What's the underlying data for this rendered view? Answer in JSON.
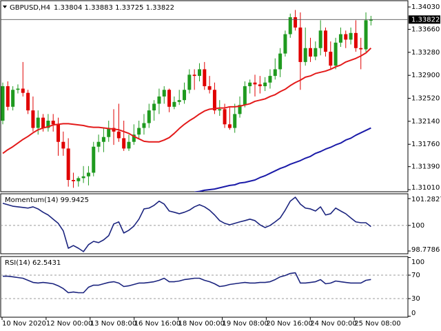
{
  "time_labels": [
    "10 Nov 2020",
    "12 Nov 00:00",
    "13 Nov 08:00",
    "16 Nov 16:00",
    "18 Nov 00:00",
    "19 Nov 08:00",
    "20 Nov 16:00",
    "24 Nov 00:00",
    "25 Nov 08:00"
  ],
  "chart_data": [
    {
      "type": "candlestick",
      "title": "GBPUSD,H4",
      "subtitle": "1.33804 1.33883 1.33725 1.33822",
      "open": [
        1.3215,
        1.3272,
        1.3238,
        1.3266,
        1.3268,
        1.3261,
        1.3232,
        1.3203,
        1.322,
        1.3203,
        1.3215,
        1.3209,
        1.318,
        1.3169,
        1.3117,
        1.3115,
        1.312,
        1.3123,
        1.3129,
        1.3172,
        1.318,
        1.3188,
        1.3203,
        1.3197,
        1.3186,
        1.3169,
        1.318,
        1.3192,
        1.3203,
        1.3211,
        1.3232,
        1.3243,
        1.3255,
        1.3266,
        1.3238,
        1.3246,
        1.3249,
        1.3266,
        1.3291,
        1.3289,
        1.33,
        1.3272,
        1.3266,
        1.3232,
        1.3234,
        1.3209,
        1.3203,
        1.3226,
        1.3241,
        1.3272,
        1.3278,
        1.3275,
        1.3272,
        1.3278,
        1.3289,
        1.33,
        1.3326,
        1.3358,
        1.3386,
        1.3369,
        1.3312,
        1.3335,
        1.3321,
        1.3335,
        1.3364,
        1.3329,
        1.3306,
        1.3344,
        1.3358,
        1.3349,
        1.336,
        1.3335,
        1.3333,
        1.33804
      ],
      "high": [
        1.3278,
        1.328,
        1.3272,
        1.3275,
        1.3312,
        1.3266,
        1.3255,
        1.3232,
        1.3226,
        1.3226,
        1.3226,
        1.322,
        1.3197,
        1.3186,
        1.3129,
        1.3123,
        1.314,
        1.314,
        1.318,
        1.3192,
        1.3203,
        1.3215,
        1.3234,
        1.3243,
        1.3215,
        1.3192,
        1.3209,
        1.3215,
        1.3226,
        1.3243,
        1.3249,
        1.3268,
        1.3272,
        1.3268,
        1.3255,
        1.3266,
        1.3278,
        1.33,
        1.33,
        1.331,
        1.3312,
        1.3289,
        1.3278,
        1.3249,
        1.3243,
        1.3237,
        1.3243,
        1.3255,
        1.328,
        1.3283,
        1.3291,
        1.3289,
        1.3287,
        1.33,
        1.3318,
        1.3335,
        1.3364,
        1.3392,
        1.3398,
        1.3394,
        1.3369,
        1.3352,
        1.3346,
        1.3381,
        1.3369,
        1.3346,
        1.3352,
        1.3369,
        1.3364,
        1.3369,
        1.3381,
        1.3352,
        1.3394,
        1.33883
      ],
      "low": [
        1.3209,
        1.3232,
        1.3232,
        1.326,
        1.3255,
        1.3226,
        1.3197,
        1.3192,
        1.3197,
        1.3197,
        1.3197,
        1.3157,
        1.3157,
        1.3106,
        1.3104,
        1.3106,
        1.3112,
        1.3108,
        1.3123,
        1.3163,
        1.3163,
        1.318,
        1.3175,
        1.318,
        1.3165,
        1.3165,
        1.3175,
        1.3186,
        1.3192,
        1.3203,
        1.3215,
        1.3226,
        1.3243,
        1.3229,
        1.3234,
        1.3241,
        1.3243,
        1.326,
        1.3266,
        1.328,
        1.3266,
        1.326,
        1.3226,
        1.3223,
        1.3203,
        1.32,
        1.3195,
        1.322,
        1.3237,
        1.326,
        1.3255,
        1.326,
        1.3264,
        1.3268,
        1.3283,
        1.3287,
        1.3321,
        1.3352,
        1.3364,
        1.3266,
        1.3306,
        1.3312,
        1.3315,
        1.3323,
        1.3321,
        1.33,
        1.33,
        1.3337,
        1.3335,
        1.3341,
        1.3329,
        1.33,
        1.3329,
        1.33725
      ],
      "close": [
        1.3272,
        1.3238,
        1.3266,
        1.3268,
        1.3261,
        1.3232,
        1.3203,
        1.322,
        1.3203,
        1.3215,
        1.3209,
        1.318,
        1.3169,
        1.3117,
        1.3115,
        1.312,
        1.3123,
        1.3129,
        1.3172,
        1.318,
        1.3188,
        1.3203,
        1.3197,
        1.3186,
        1.3169,
        1.318,
        1.3192,
        1.3203,
        1.3211,
        1.3232,
        1.3243,
        1.3255,
        1.3266,
        1.3238,
        1.3246,
        1.3249,
        1.3266,
        1.3291,
        1.3289,
        1.33,
        1.3272,
        1.3266,
        1.3232,
        1.3234,
        1.3209,
        1.3203,
        1.3226,
        1.3241,
        1.3272,
        1.3278,
        1.3275,
        1.3272,
        1.3278,
        1.3289,
        1.33,
        1.3326,
        1.3358,
        1.3386,
        1.3369,
        1.3312,
        1.3335,
        1.3321,
        1.3335,
        1.3364,
        1.3329,
        1.3306,
        1.3344,
        1.3358,
        1.3349,
        1.336,
        1.3335,
        1.3333,
        1.3381,
        1.33822
      ],
      "up_color": "#1f9a1f",
      "down_color": "#e00000",
      "overlays": [
        {
          "color": "#e31a1a",
          "values": [
            1.3161,
            1.3167,
            1.3172,
            1.3178,
            1.3184,
            1.3189,
            1.3195,
            1.32,
            1.3203,
            1.3205,
            1.3208,
            1.3209,
            1.321,
            1.321,
            1.3209,
            1.3208,
            1.3207,
            1.3205,
            1.3204,
            1.3204,
            1.3203,
            1.3202,
            1.3201,
            1.32,
            1.3197,
            1.3194,
            1.3189,
            1.3185,
            1.3181,
            1.318,
            1.318,
            1.318,
            1.3183,
            1.3187,
            1.3194,
            1.3202,
            1.3209,
            1.3215,
            1.322,
            1.3226,
            1.3231,
            1.3234,
            1.3235,
            1.3236,
            1.3236,
            1.3238,
            1.3238,
            1.3239,
            1.3241,
            1.3243,
            1.3247,
            1.3249,
            1.3251,
            1.3255,
            1.3258,
            1.3263,
            1.3267,
            1.3273,
            1.3278,
            1.3282,
            1.3287,
            1.3289,
            1.3293,
            1.3295,
            1.3297,
            1.33,
            1.3304,
            1.3307,
            1.3312,
            1.3315,
            1.3318,
            1.3322,
            1.3327,
            1.3335
          ]
        },
        {
          "color": "#1a1aa8",
          "values": [
            null,
            null,
            null,
            null,
            null,
            null,
            null,
            null,
            null,
            null,
            null,
            null,
            null,
            null,
            null,
            null,
            null,
            null,
            null,
            null,
            null,
            null,
            null,
            null,
            null,
            null,
            null,
            null,
            null,
            null,
            null,
            null,
            null,
            null,
            null,
            null,
            null,
            null,
            1.3097,
            1.3098,
            1.31,
            1.3101,
            1.3102,
            1.3104,
            1.3106,
            1.3108,
            1.3109,
            1.3112,
            1.3113,
            1.3115,
            1.3117,
            1.3121,
            1.3124,
            1.3128,
            1.3132,
            1.3136,
            1.3139,
            1.3143,
            1.3146,
            1.3149,
            1.3153,
            1.3156,
            1.3161,
            1.3164,
            1.3168,
            1.3171,
            1.3175,
            1.3178,
            1.3183,
            1.3186,
            1.3191,
            1.3195,
            1.3199,
            1.3203
          ]
        }
      ],
      "ylim": [
        1.30976,
        1.34145
      ],
      "yticks": [
        {
          "value": 1.3403,
          "label": "1.34030"
        },
        {
          "value": 1.3366,
          "label": "1.33660"
        },
        {
          "value": 1.3328,
          "label": "1.33280"
        },
        {
          "value": 1.329,
          "label": "1.32900"
        },
        {
          "value": 1.3252,
          "label": "1.32520"
        },
        {
          "value": 1.3214,
          "label": "1.32140"
        },
        {
          "value": 1.3176,
          "label": "1.31760"
        },
        {
          "value": 1.3139,
          "label": "1.31390"
        },
        {
          "value": 1.3101,
          "label": "1.31010"
        }
      ],
      "last_price": {
        "value": 1.33822,
        "label": "1.33822"
      }
    },
    {
      "type": "line",
      "title": "Momentum(14) 99.9425",
      "color": "#1a237e",
      "values": [
        101.06,
        100.99,
        100.92,
        100.89,
        100.86,
        100.83,
        100.89,
        100.79,
        100.63,
        100.5,
        100.3,
        100.1,
        99.74,
        98.91,
        99.04,
        98.91,
        98.75,
        99.08,
        99.24,
        99.18,
        99.31,
        99.51,
        100.07,
        100.17,
        99.64,
        99.77,
        99.97,
        100.3,
        100.79,
        100.83,
        100.96,
        101.16,
        101.02,
        100.69,
        100.63,
        100.56,
        100.63,
        100.73,
        100.89,
        100.99,
        100.89,
        100.73,
        100.5,
        100.23,
        100.1,
        100.03,
        100.1,
        100.17,
        100.23,
        100.3,
        100.23,
        100.03,
        99.9,
        100,
        100.17,
        100.36,
        100.73,
        101.16,
        101.35,
        101.02,
        100.83,
        100.79,
        100.69,
        100.89,
        100.5,
        100.56,
        100.83,
        100.69,
        100.56,
        100.36,
        100.17,
        100.13,
        100.13,
        99.9425
      ],
      "ylim": [
        98.6466,
        101.5137
      ],
      "yticks": [
        98.7786,
        100,
        101.2827
      ],
      "grid": true
    },
    {
      "type": "line",
      "title": "RSI(14) 62.5431",
      "color": "#1a237e",
      "values": [
        68.2,
        68.2,
        67.1,
        65.9,
        64.7,
        61.2,
        57.6,
        56.5,
        57.6,
        56.5,
        55.3,
        51.8,
        47.1,
        40,
        41.2,
        40,
        40,
        49.4,
        52.9,
        52.9,
        55.3,
        57.6,
        58.8,
        56.5,
        50.6,
        51.8,
        54.1,
        56.5,
        56.5,
        57.6,
        58.8,
        61.2,
        64.7,
        58.8,
        58.8,
        60,
        62.4,
        63.5,
        64.7,
        64.7,
        61.2,
        58.8,
        55.3,
        50.6,
        51.8,
        54.1,
        55.3,
        56.5,
        57.6,
        56.5,
        56.5,
        57.6,
        57.6,
        58.8,
        62.4,
        67.1,
        69.4,
        72.9,
        74.1,
        56.5,
        56.5,
        57.6,
        58.8,
        62.4,
        55.3,
        56.5,
        60,
        58.8,
        57.6,
        56.5,
        56.5,
        56.5,
        61.2,
        62.5431
      ],
      "ylim": [
        -1.8,
        101.8
      ],
      "yticks": [
        0,
        30,
        70,
        100
      ],
      "grid": true
    }
  ]
}
